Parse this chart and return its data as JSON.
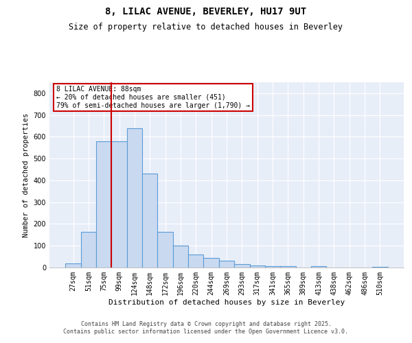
{
  "title": "8, LILAC AVENUE, BEVERLEY, HU17 9UT",
  "subtitle": "Size of property relative to detached houses in Beverley",
  "xlabel": "Distribution of detached houses by size in Beverley",
  "ylabel": "Number of detached properties",
  "categories": [
    "27sqm",
    "51sqm",
    "75sqm",
    "99sqm",
    "124sqm",
    "148sqm",
    "172sqm",
    "196sqm",
    "220sqm",
    "244sqm",
    "269sqm",
    "293sqm",
    "317sqm",
    "341sqm",
    "365sqm",
    "389sqm",
    "413sqm",
    "438sqm",
    "462sqm",
    "486sqm",
    "510sqm"
  ],
  "values": [
    20,
    165,
    580,
    580,
    640,
    430,
    165,
    100,
    60,
    45,
    32,
    15,
    10,
    5,
    5,
    1,
    5,
    1,
    1,
    1,
    2
  ],
  "bar_color": "#c9d9f0",
  "bar_edge_color": "#5b9bd5",
  "vline_index": 3,
  "vline_color": "#cc0000",
  "annotation_text": "8 LILAC AVENUE: 88sqm\n← 20% of detached houses are smaller (451)\n79% of semi-detached houses are larger (1,790) →",
  "annotation_box_color": "#cc0000",
  "ylim": [
    0,
    850
  ],
  "yticks": [
    0,
    100,
    200,
    300,
    400,
    500,
    600,
    700,
    800
  ],
  "background_color": "#e8eef8",
  "grid_color": "#ffffff",
  "footer_line1": "Contains HM Land Registry data © Crown copyright and database right 2025.",
  "footer_line2": "Contains public sector information licensed under the Open Government Licence v3.0."
}
